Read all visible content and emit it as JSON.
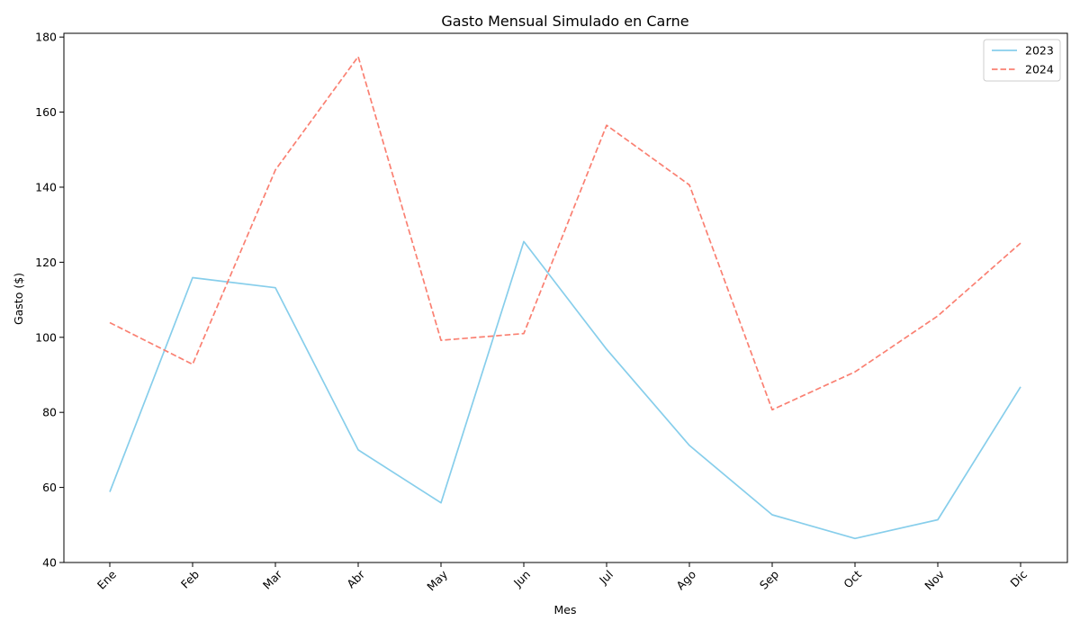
{
  "chart_data": {
    "type": "line",
    "title": "Gasto Mensual Simulado en Carne",
    "xlabel": "Mes",
    "ylabel": "Gasto ($)",
    "categories": [
      "Ene",
      "Feb",
      "Mar",
      "Abr",
      "May",
      "Jun",
      "Jul",
      "Ago",
      "Sep",
      "Oct",
      "Nov",
      "Dic"
    ],
    "ylim": [
      40,
      181
    ],
    "yticks": [
      40,
      60,
      80,
      100,
      120,
      140,
      160,
      180
    ],
    "grid": false,
    "legend_position": "top-right",
    "series": [
      {
        "name": "2023",
        "color": "#87CEEB",
        "linestyle": "solid",
        "values": [
          58.8,
          115.9,
          113.2,
          70.0,
          55.9,
          125.5,
          96.8,
          71.2,
          52.7,
          46.4,
          51.4,
          86.8
        ]
      },
      {
        "name": "2024",
        "color": "#FA8072",
        "linestyle": "dashed",
        "values": [
          103.9,
          92.8,
          144.6,
          174.8,
          99.2,
          101.0,
          156.5,
          140.6,
          80.7,
          90.8,
          105.7,
          125.1
        ]
      }
    ]
  }
}
